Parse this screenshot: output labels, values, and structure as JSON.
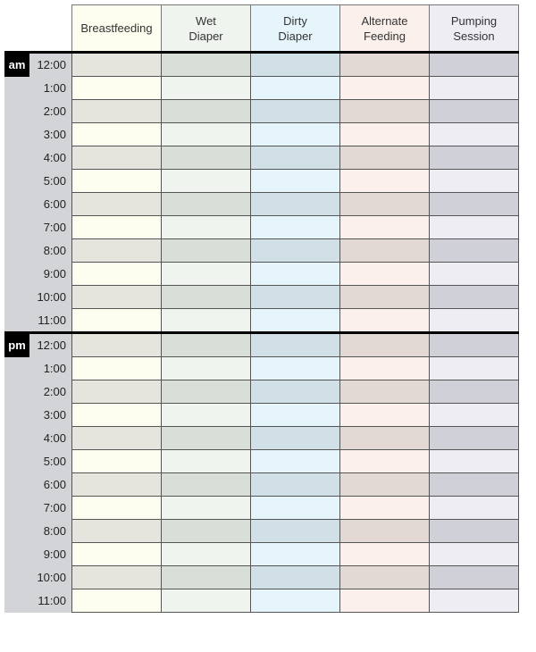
{
  "columns": [
    {
      "label": "Breastfeeding",
      "light": "#fdfdf0",
      "dark": "#e6e5dd"
    },
    {
      "label": "Wet\nDiaper",
      "light": "#eff4ee",
      "dark": "#d7dfd7"
    },
    {
      "label": "Dirty\nDiaper",
      "light": "#e6f5fc",
      "dark": "#d1e0e6"
    },
    {
      "label": "Alternate\nFeeding",
      "light": "#fbf0ec",
      "dark": "#e3d9d4"
    },
    {
      "label": "Pumping\nSession",
      "light": "#eeedf4",
      "dark": "#d0d0d9"
    }
  ],
  "periods": [
    {
      "label": "am",
      "times": [
        "12:00",
        "1:00",
        "2:00",
        "3:00",
        "4:00",
        "5:00",
        "6:00",
        "7:00",
        "8:00",
        "9:00",
        "10:00",
        "11:00"
      ]
    },
    {
      "label": "pm",
      "times": [
        "12:00",
        "1:00",
        "2:00",
        "3:00",
        "4:00",
        "5:00",
        "6:00",
        "7:00",
        "8:00",
        "9:00",
        "10:00",
        "11:00"
      ]
    }
  ]
}
